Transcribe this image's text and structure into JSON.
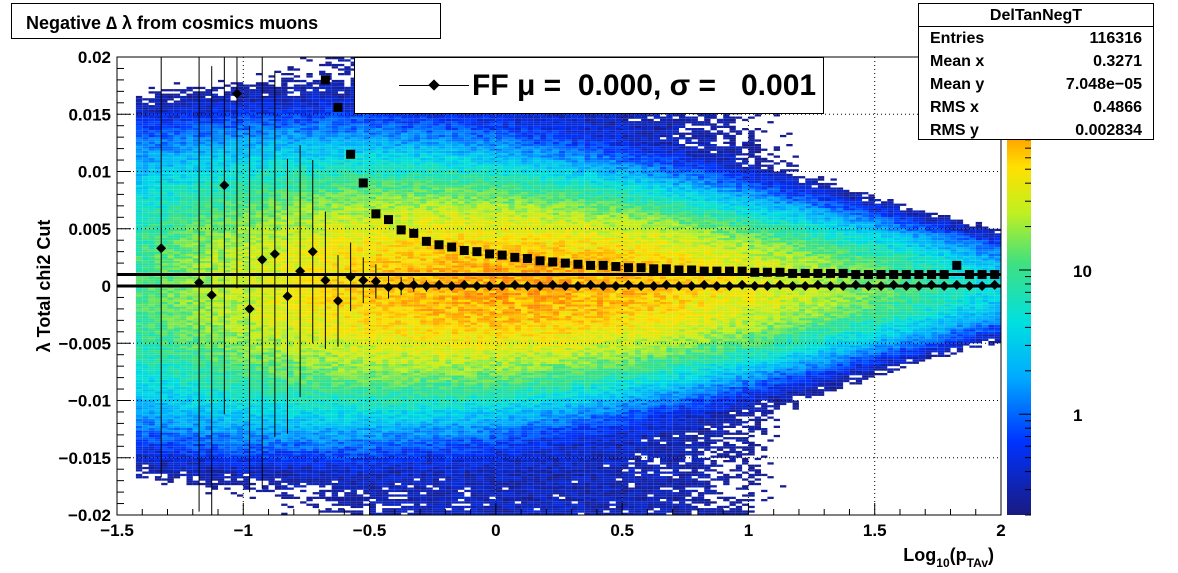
{
  "title": "Negative ∆ λ from cosmics muons",
  "stats": {
    "name": "DelTanNegT",
    "rows": [
      {
        "label": "Entries",
        "value": "116316"
      },
      {
        "label": "Mean x",
        "value": "0.3271"
      },
      {
        "label": "Mean y",
        "value": "7.048e−05"
      },
      {
        "label": "RMS x",
        "value": "0.4866"
      },
      {
        "label": "RMS y",
        "value": "0.002834"
      }
    ]
  },
  "legend": {
    "entry": "FF μ =  0.000, σ =   0.001"
  },
  "colors": {
    "profile": "#000000",
    "fit_lines": "#000000",
    "palette": "rainbow (dark blue → cyan → green → yellow → red)"
  },
  "chart_data": {
    "type": "heatmap",
    "title": "Negative ∆ λ from cosmics muons",
    "xlabel_base": "Log",
    "xlabel_sub": "10",
    "xlabel_open": "(p",
    "xlabel_sub2": "TAv",
    "xlabel_close": ")",
    "ylabel": "λ  Total chi2 Cut",
    "xlim": [
      -1.5,
      2
    ],
    "ylim": [
      -0.02,
      0.02
    ],
    "x_ticks": [
      -1.5,
      -1,
      -0.5,
      0,
      0.5,
      1,
      1.5,
      2
    ],
    "x_tick_labels": [
      "−1.5",
      "−1",
      "−0.5",
      "0",
      "0.5",
      "1",
      "1.5",
      "2"
    ],
    "y_ticks": [
      -0.02,
      -0.015,
      -0.01,
      -0.005,
      0,
      0.005,
      0.01,
      0.015,
      0.02
    ],
    "y_tick_labels": [
      "−0.02",
      "−0.015",
      "−0.01",
      "−0.005",
      "0",
      "0.005",
      "0.01",
      "0.015",
      "0.02"
    ],
    "z_scale": "log",
    "z_range": [
      0.2,
      300
    ],
    "z_tick_values": [
      1,
      10
    ],
    "z_tick_labels": [
      "1",
      "10"
    ],
    "grid": true,
    "horizontal_lines": [
      0.001,
      0
    ],
    "rms_profile": {
      "marker": "square",
      "x": [
        -0.675,
        -0.625,
        -0.575,
        -0.525,
        -0.475,
        -0.425,
        -0.375,
        -0.325,
        -0.275,
        -0.225,
        -0.175,
        -0.125,
        -0.075,
        -0.025,
        0.025,
        0.075,
        0.125,
        0.175,
        0.225,
        0.275,
        0.325,
        0.375,
        0.425,
        0.475,
        0.525,
        0.575,
        0.625,
        0.675,
        0.725,
        0.775,
        0.825,
        0.875,
        0.925,
        0.975,
        1.025,
        1.075,
        1.125,
        1.175,
        1.225,
        1.275,
        1.325,
        1.375,
        1.425,
        1.475,
        1.525,
        1.575,
        1.625,
        1.675,
        1.725,
        1.775,
        1.825,
        1.875,
        1.925,
        1.975
      ],
      "y": [
        0.018,
        0.0156,
        0.0115,
        0.009,
        0.0063,
        0.0058,
        0.0049,
        0.0046,
        0.0039,
        0.0036,
        0.0034,
        0.0031,
        0.003,
        0.0028,
        0.0027,
        0.0025,
        0.0024,
        0.0022,
        0.0021,
        0.002,
        0.0019,
        0.0018,
        0.0018,
        0.0017,
        0.0016,
        0.0016,
        0.0015,
        0.0015,
        0.0014,
        0.0014,
        0.0013,
        0.0013,
        0.0013,
        0.0013,
        0.0012,
        0.0012,
        0.0012,
        0.0011,
        0.0011,
        0.0011,
        0.0011,
        0.0011,
        0.001,
        0.001,
        0.001,
        0.001,
        0.001,
        0.001,
        0.001,
        0.001,
        0.0018,
        0.001,
        0.001,
        0.001
      ]
    },
    "mean_profile": {
      "marker": "diamond",
      "x": [
        -1.325,
        -1.175,
        -1.125,
        -1.075,
        -1.025,
        -0.975,
        -0.925,
        -0.875,
        -0.825,
        -0.775,
        -0.725,
        -0.675,
        -0.625,
        -0.575,
        -0.525,
        -0.475,
        -0.425,
        -0.375,
        -0.325,
        -0.275,
        -0.225,
        -0.175,
        -0.125,
        -0.075,
        -0.025,
        0.025,
        0.075,
        0.125,
        0.175,
        0.225,
        0.275,
        0.325,
        0.375,
        0.425,
        0.475,
        0.525,
        0.575,
        0.625,
        0.675,
        0.725,
        0.775,
        0.825,
        0.875,
        0.925,
        0.975,
        1.025,
        1.075,
        1.125,
        1.175,
        1.225,
        1.275,
        1.325,
        1.375,
        1.425,
        1.475,
        1.525,
        1.575,
        1.625,
        1.675,
        1.725,
        1.775,
        1.825,
        1.875,
        1.925,
        1.975
      ],
      "y": [
        0.0033,
        0.0003,
        -0.0008,
        0.0088,
        0.0168,
        -0.002,
        0.0023,
        0.0028,
        -0.0009,
        0.0013,
        0.003,
        0.0005,
        -0.0013,
        0.0008,
        0.0005,
        0.0004,
        -0.0001,
        0.0,
        0.0001,
        0.0,
        0.0001,
        0.0,
        0.0001,
        0.0,
        0.0,
        0.0,
        0.0001,
        0.0,
        0.0,
        0.0001,
        0.0,
        0.0,
        0.0001,
        0.0,
        0.0,
        0.0001,
        0.0,
        0.0,
        0.0001,
        0.0,
        0.0,
        0.0001,
        0.0,
        0.0,
        0.0001,
        0.0,
        0.0,
        0.0001,
        0.0,
        0.0,
        0.0001,
        0.0,
        0.0,
        0.0001,
        0.0,
        0.0,
        0.0001,
        0.0,
        0.0,
        0.0001,
        0.0,
        0.0001,
        0.0,
        0.0,
        0.0001
      ],
      "y_error": [
        0.02,
        0.02,
        0.02,
        0.02,
        0.017,
        0.016,
        0.02,
        0.016,
        0.012,
        0.011,
        0.008,
        0.006,
        0.004,
        0.003,
        0.002,
        0.0015,
        0.001,
        0.0008,
        0.0006,
        0.0005,
        0.0004,
        0.0003,
        0.0002,
        0.0002,
        0.0001,
        0.0001,
        0.0001,
        0.0001,
        0.0001,
        0.0001,
        0.0001,
        0.0001,
        0.0001,
        0.0001,
        0.0001,
        0.0001,
        0.0001,
        0.0001,
        0.0001,
        0.0001,
        0.0001,
        0.0001,
        0.0001,
        0.0001,
        0.0001,
        0.0001,
        0.0001,
        0.0001,
        0.0001,
        0.0001,
        0.0001,
        0.0001,
        0.0001,
        0.0001,
        0.0001,
        0.0001,
        0.0001,
        0.0001,
        0.0001,
        0.0001,
        0.0001,
        0.0001,
        0.0001,
        0.0001,
        0.0001
      ]
    }
  }
}
